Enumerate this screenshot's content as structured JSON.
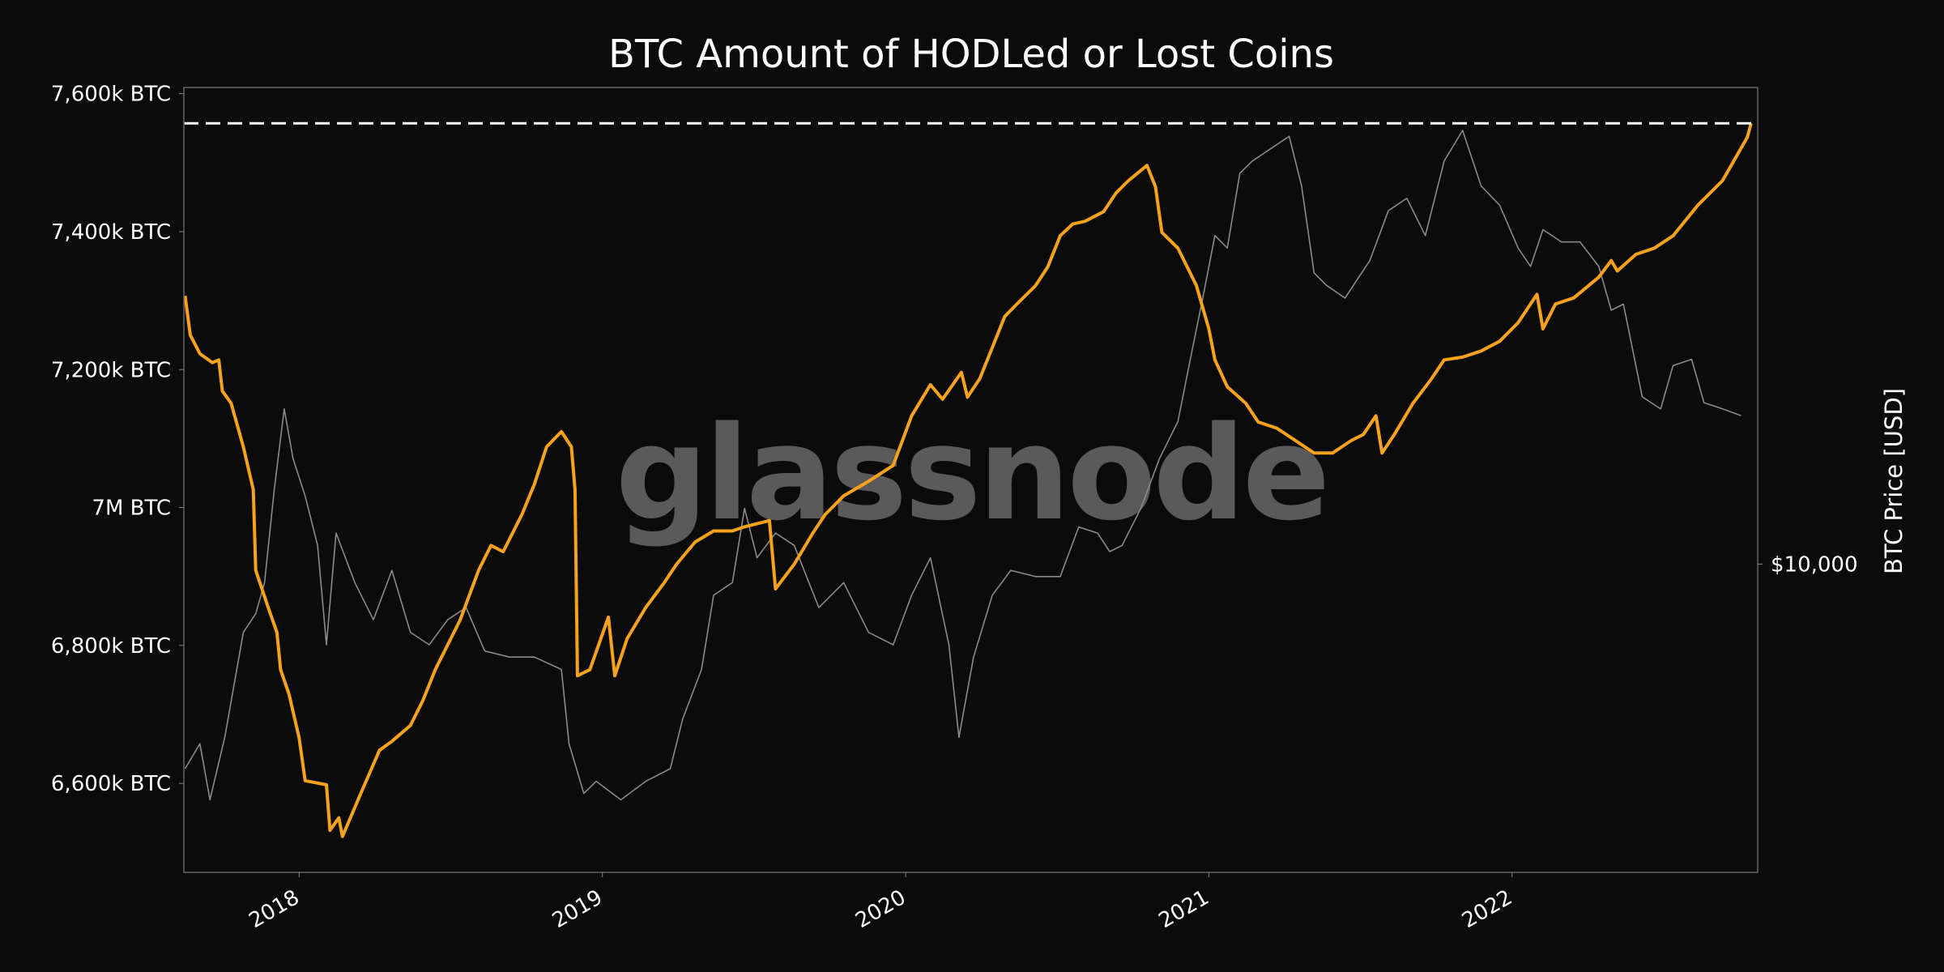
{
  "chart_data": {
    "type": "line",
    "title": "BTC Amount of HODLed or Lost Coins",
    "watermark": "glassnode",
    "xlabel": "",
    "ylabel_left": "",
    "ylabel_right": "BTC Price [USD]",
    "x_ticks": [
      "2018",
      "2019",
      "2020",
      "2021",
      "2022"
    ],
    "x_tick_values": [
      2018,
      2019,
      2020,
      2021,
      2022
    ],
    "xlim": [
      2017.62,
      2022.81
    ],
    "y_left_ticks": [
      {
        "value": 7600,
        "label": "7,600k BTC"
      },
      {
        "value": 7400,
        "label": "7,400k BTC"
      },
      {
        "value": 7200,
        "label": "7,200k BTC"
      },
      {
        "value": 7000,
        "label": "7M BTC"
      },
      {
        "value": 6800,
        "label": "6,800k BTC"
      },
      {
        "value": 6600,
        "label": "6,600k BTC"
      }
    ],
    "y_left_unit": "thousand BTC",
    "ylim_left": [
      6471,
      7609
    ],
    "y_right_scale": "log",
    "y_right_ticks": [
      {
        "value": 10000,
        "label": "$10,000"
      }
    ],
    "grid": false,
    "reference_line": {
      "value": 7557,
      "style": "dashed",
      "color": "#ffffff"
    },
    "series": [
      {
        "key": "hodl",
        "axis": "left",
        "color": "#f7a21b",
        "x": [
          2017.624,
          2017.641,
          2017.673,
          2017.714,
          2017.735,
          2017.747,
          2017.776,
          2017.816,
          2017.849,
          2017.857,
          2017.898,
          2017.927,
          2017.939,
          2017.967,
          2018.0,
          2018.02,
          2018.09,
          2018.102,
          2018.131,
          2018.143,
          2018.204,
          2018.265,
          2018.306,
          2018.367,
          2018.408,
          2018.449,
          2018.531,
          2018.592,
          2018.633,
          2018.673,
          2018.735,
          2018.776,
          2018.816,
          2018.865,
          2018.898,
          2018.91,
          2018.918,
          2018.959,
          2019.02,
          2019.041,
          2019.082,
          2019.143,
          2019.204,
          2019.245,
          2019.306,
          2019.367,
          2019.429,
          2019.469,
          2019.551,
          2019.571,
          2019.633,
          2019.694,
          2019.735,
          2019.796,
          2019.878,
          2019.959,
          2020.02,
          2020.082,
          2020.122,
          2020.184,
          2020.204,
          2020.245,
          2020.286,
          2020.327,
          2020.367,
          2020.429,
          2020.469,
          2020.51,
          2020.551,
          2020.592,
          2020.653,
          2020.694,
          2020.735,
          2020.796,
          2020.824,
          2020.845,
          2020.898,
          2020.959,
          2021.0,
          2021.02,
          2021.061,
          2021.122,
          2021.163,
          2021.224,
          2021.286,
          2021.347,
          2021.408,
          2021.469,
          2021.51,
          2021.551,
          2021.571,
          2021.612,
          2021.673,
          2021.735,
          2021.776,
          2021.837,
          2021.898,
          2021.959,
          2022.02,
          2022.082,
          2022.102,
          2022.143,
          2022.204,
          2022.286,
          2022.327,
          2022.347,
          2022.408,
          2022.469,
          2022.531,
          2022.612,
          2022.694,
          2022.776,
          2022.788
        ],
        "y": [
          7307,
          7250,
          7223,
          7210,
          7214,
          7169,
          7151,
          7088,
          7026,
          6909,
          6855,
          6819,
          6765,
          6729,
          6666,
          6604,
          6598,
          6532,
          6550,
          6523,
          6586,
          6648,
          6661,
          6684,
          6720,
          6765,
          6837,
          6909,
          6945,
          6936,
          6990,
          7034,
          7088,
          7110,
          7088,
          7026,
          6756,
          6765,
          6841,
          6756,
          6810,
          6855,
          6891,
          6918,
          6950,
          6966,
          6966,
          6972,
          6981,
          6882,
          6918,
          6963,
          6990,
          7017,
          7038,
          7061,
          7133,
          7178,
          7157,
          7196,
          7160,
          7187,
          7232,
          7277,
          7295,
          7322,
          7349,
          7394,
          7411,
          7415,
          7429,
          7456,
          7474,
          7496,
          7465,
          7399,
          7376,
          7322,
          7259,
          7214,
          7175,
          7151,
          7124,
          7115,
          7097,
          7079,
          7079,
          7097,
          7106,
          7133,
          7079,
          7106,
          7151,
          7187,
          7214,
          7218,
          7227,
          7241,
          7268,
          7309,
          7259,
          7295,
          7304,
          7334,
          7358,
          7343,
          7367,
          7376,
          7394,
          7438,
          7474,
          7537,
          7557
        ]
      },
      {
        "key": "price",
        "axis": "right",
        "color": "#8a8a8a",
        "x": [
          2017.624,
          2017.673,
          2017.706,
          2017.755,
          2017.816,
          2017.857,
          2017.886,
          2017.918,
          2017.951,
          2017.98,
          2018.02,
          2018.061,
          2018.09,
          2018.122,
          2018.184,
          2018.245,
          2018.306,
          2018.367,
          2018.429,
          2018.49,
          2018.551,
          2018.612,
          2018.694,
          2018.776,
          2018.865,
          2018.89,
          2018.939,
          2018.98,
          2019.061,
          2019.143,
          2019.224,
          2019.265,
          2019.327,
          2019.367,
          2019.429,
          2019.469,
          2019.51,
          2019.571,
          2019.633,
          2019.714,
          2019.796,
          2019.878,
          2019.959,
          2020.02,
          2020.082,
          2020.143,
          2020.176,
          2020.224,
          2020.286,
          2020.347,
          2020.429,
          2020.51,
          2020.571,
          2020.633,
          2020.673,
          2020.714,
          2020.776,
          2020.837,
          2020.898,
          2020.939,
          2020.98,
          2021.02,
          2021.061,
          2021.102,
          2021.143,
          2021.204,
          2021.265,
          2021.306,
          2021.347,
          2021.388,
          2021.449,
          2021.531,
          2021.592,
          2021.653,
          2021.714,
          2021.776,
          2021.837,
          2021.898,
          2021.959,
          2022.02,
          2022.061,
          2022.102,
          2022.163,
          2022.224,
          2022.286,
          2022.327,
          2022.367,
          2022.429,
          2022.49,
          2022.531,
          2022.592,
          2022.633,
          2022.694,
          2022.755
        ],
        "y": [
          4090,
          4560,
          3570,
          4690,
          7420,
          8050,
          9220,
          13850,
          19700,
          15850,
          13470,
          10850,
          7030,
          11450,
          9220,
          7840,
          9730,
          7420,
          7030,
          7840,
          8270,
          6840,
          6660,
          6660,
          6310,
          4560,
          3670,
          3870,
          3570,
          3870,
          4090,
          5080,
          6310,
          8730,
          9220,
          12760,
          10280,
          11450,
          10850,
          8270,
          9220,
          7420,
          7030,
          8730,
          10280,
          7030,
          4690,
          6660,
          8730,
          9730,
          9470,
          9470,
          11760,
          11450,
          10560,
          10850,
          12760,
          15850,
          18640,
          24470,
          31980,
          42020,
          39800,
          55130,
          58180,
          61420,
          64840,
          52200,
          35710,
          33820,
          31980,
          37690,
          46830,
          49450,
          42020,
          58180,
          66540,
          52200,
          48000,
          39800,
          36730,
          43120,
          40870,
          40870,
          36730,
          30320,
          31140,
          20780,
          19700,
          23800,
          24470,
          20250,
          19700,
          19130
        ]
      }
    ]
  }
}
